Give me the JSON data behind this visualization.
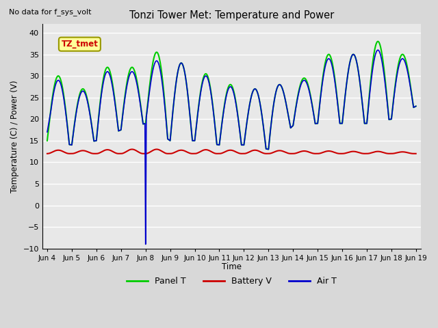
{
  "title": "Tonzi Tower Met: Temperature and Power",
  "topleft_text": "No data for f_sys_volt",
  "ylabel": "Temperature (C) / Power (V)",
  "xlabel": "Time",
  "ylim": [
    -10,
    42
  ],
  "yticks": [
    -10,
    -5,
    0,
    5,
    10,
    15,
    20,
    25,
    30,
    35,
    40
  ],
  "xtick_labels": [
    "Jun 4",
    "Jun 5",
    "Jun 6",
    "Jun 7",
    "Jun 8",
    "Jun 9",
    "Jun 10",
    "Jun 11",
    "Jun 12",
    "Jun 13",
    "Jun 14",
    "Jun 15",
    "Jun 16",
    "Jun 17",
    "Jun 18",
    "Jun 19"
  ],
  "annotation_box": "TZ_tmet",
  "annotation_box_color": "#ffff99",
  "annotation_text_color": "#cc0000",
  "bg_color": "#d8d8d8",
  "plot_bg_color": "#e8e8e8",
  "grid_color": "#ffffff",
  "panel_t_color": "#00cc00",
  "battery_v_color": "#cc0000",
  "air_t_color": "#0000cc",
  "legend_panel_t": "Panel T",
  "legend_battery_v": "Battery V",
  "legend_air_t": "Air T",
  "figwidth": 6.4,
  "figheight": 4.8,
  "dpi": 100
}
